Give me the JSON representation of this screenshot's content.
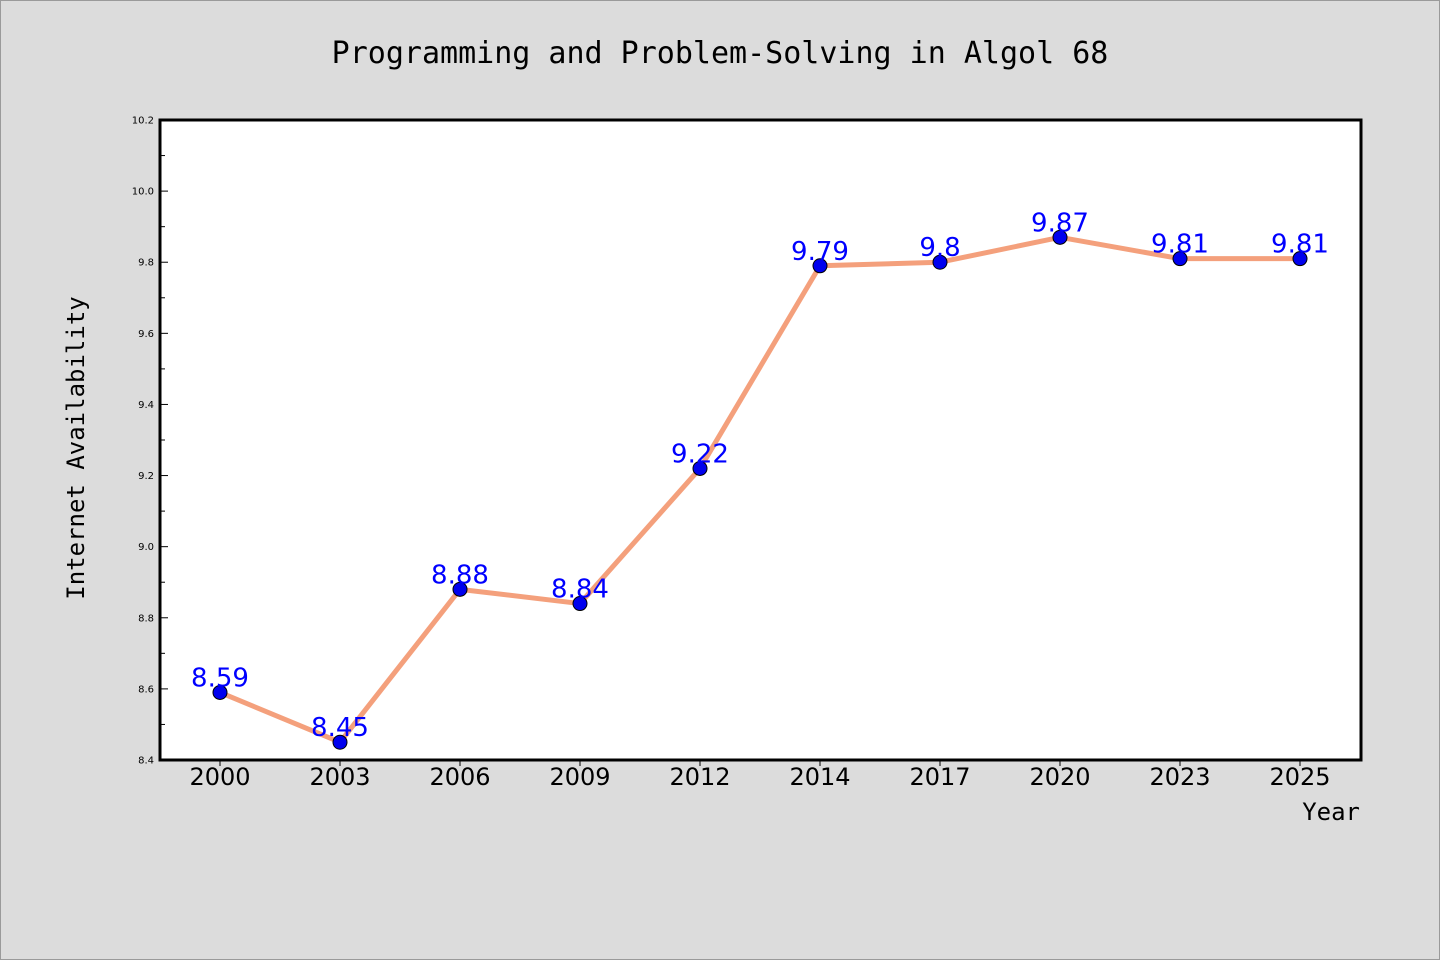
{
  "chart_data": {
    "type": "line",
    "title": "Programming and Problem-Solving in Algol 68",
    "xlabel": "Year",
    "ylabel": "Internet Availability",
    "categories": [
      "2000",
      "2003",
      "2006",
      "2009",
      "2012",
      "2014",
      "2017",
      "2020",
      "2023",
      "2025"
    ],
    "values": [
      8.59,
      8.45,
      8.88,
      8.84,
      9.22,
      9.79,
      9.8,
      9.87,
      9.81,
      9.81
    ],
    "data_labels": [
      "8.59",
      "8.45",
      "8.88",
      "8.84",
      "9.22",
      "9.79",
      "9.8",
      "9.87",
      "9.81",
      "9.81"
    ],
    "ylim": [
      8.4,
      10.2
    ],
    "yticks": [
      "8.4",
      "8.6",
      "8.8",
      "9.0",
      "9.2",
      "9.4",
      "9.6",
      "9.8",
      "10.0",
      "10.2"
    ],
    "grid": false,
    "legend": false,
    "colors": {
      "line": "#f4a07c",
      "marker": "#0000ee",
      "label": "#0000ff",
      "plot_background": "#ffffff",
      "figure_background": "#dcdcdc"
    }
  }
}
